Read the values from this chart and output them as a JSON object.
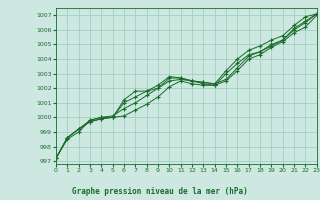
{
  "title": "Graphe pression niveau de la mer (hPa)",
  "xlim": [
    0,
    23
  ],
  "ylim": [
    996.8,
    1007.5
  ],
  "yticks": [
    997,
    998,
    999,
    1000,
    1001,
    1002,
    1003,
    1004,
    1005,
    1006,
    1007
  ],
  "xticks": [
    0,
    1,
    2,
    3,
    4,
    5,
    6,
    7,
    8,
    9,
    10,
    11,
    12,
    13,
    14,
    15,
    16,
    17,
    18,
    19,
    20,
    21,
    22,
    23
  ],
  "bg_color": "#cce8e0",
  "grid_color": "#99ccbb",
  "line_color": "#1a6b2a",
  "line1": [
    997.2,
    998.6,
    999.2,
    999.7,
    999.9,
    1000.0,
    1000.1,
    1000.5,
    1000.9,
    1001.4,
    1002.1,
    1002.5,
    1002.3,
    1002.2,
    1002.2,
    1003.0,
    1003.7,
    1004.3,
    1004.5,
    1005.0,
    1005.3,
    1006.1,
    1006.6,
    1007.1
  ],
  "line2": [
    997.2,
    998.6,
    999.2,
    999.7,
    999.9,
    1000.0,
    1001.2,
    1001.8,
    1001.8,
    1002.0,
    1002.7,
    1002.7,
    1002.5,
    1002.3,
    1002.2,
    1002.5,
    1003.2,
    1004.0,
    1004.3,
    1004.8,
    1005.2,
    1005.8,
    1006.2,
    1007.0
  ],
  "line3": [
    997.2,
    998.6,
    999.2,
    999.8,
    1000.0,
    1000.0,
    1001.0,
    1001.4,
    1001.8,
    1002.2,
    1002.8,
    1002.7,
    1002.5,
    1002.4,
    1002.3,
    1003.2,
    1004.0,
    1004.6,
    1004.9,
    1005.3,
    1005.6,
    1006.3,
    1006.9,
    1007.1
  ],
  "line4": [
    997.2,
    998.5,
    999.0,
    999.8,
    1000.0,
    1000.1,
    1000.6,
    1001.0,
    1001.5,
    1002.0,
    1002.5,
    1002.6,
    1002.5,
    1002.4,
    1002.3,
    1002.6,
    1003.4,
    1004.2,
    1004.5,
    1004.9,
    1005.3,
    1006.0,
    1006.5,
    1007.1
  ]
}
